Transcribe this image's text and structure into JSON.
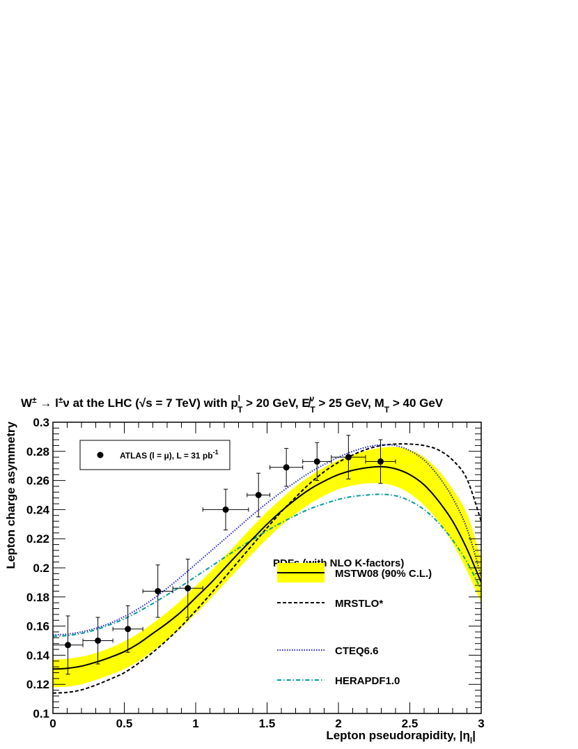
{
  "chart_data": {
    "type": "scatter",
    "title": "W± → l±ν at the LHC (√s = 7 TeV) with p_T^l > 20 GeV, E̸_T^ν > 25 GeV, M_T > 40 GeV",
    "title_parts": {
      "t1": "W",
      "t2": "±",
      "t3": " → l",
      "t4": "±",
      "t5": "ν at the LHC (",
      "t6": "√s = 7 TeV) with p",
      "t7": "l",
      "t8": "T",
      "t9": " > 20 GeV, E̸",
      "t10": "ν",
      "t11": "T",
      "t12": " > 25 GeV, M",
      "t13": "T",
      "t14": " > 40 GeV"
    },
    "xlabel": "Lepton pseudorapidity, |η",
    "xlabel_sub": "l",
    "xlabel_end": "|",
    "ylabel": "Lepton charge asymmetry",
    "xlim": [
      0,
      3
    ],
    "ylim": [
      0.1,
      0.3
    ],
    "x_ticks": [
      0,
      0.5,
      1,
      1.5,
      2,
      2.5,
      3
    ],
    "x_tick_labels": [
      "0",
      "0.5",
      "1",
      "1.5",
      "2",
      "2.5",
      "3"
    ],
    "y_ticks": [
      0.1,
      0.12,
      0.14,
      0.16,
      0.18,
      0.2,
      0.22,
      0.24,
      0.26,
      0.28,
      0.3
    ],
    "y_tick_labels": [
      "0.1",
      "0.12",
      "0.14",
      "0.16",
      "0.18",
      "0.2",
      "0.22",
      "0.24",
      "0.26",
      "0.28",
      "0.3"
    ],
    "grid": false,
    "data_points": {
      "legend": "ATLAS (l = μ), L = 31 pb",
      "legend_sup": "-1",
      "points": [
        {
          "x": 0.105,
          "y": 0.147,
          "xerr": 0.105,
          "yerr": 0.02
        },
        {
          "x": 0.315,
          "y": 0.15,
          "xerr": 0.105,
          "yerr": 0.016
        },
        {
          "x": 0.525,
          "y": 0.158,
          "xerr": 0.105,
          "yerr": 0.016
        },
        {
          "x": 0.735,
          "y": 0.184,
          "xerr": 0.105,
          "yerr": 0.018
        },
        {
          "x": 0.945,
          "y": 0.186,
          "xerr": 0.105,
          "yerr": 0.02
        },
        {
          "x": 1.21,
          "y": 0.24,
          "xerr": 0.16,
          "yerr": 0.014
        },
        {
          "x": 1.44,
          "y": 0.25,
          "xerr": 0.08,
          "yerr": 0.015
        },
        {
          "x": 1.635,
          "y": 0.269,
          "xerr": 0.115,
          "yerr": 0.013
        },
        {
          "x": 1.85,
          "y": 0.273,
          "xerr": 0.1,
          "yerr": 0.013
        },
        {
          "x": 2.07,
          "y": 0.276,
          "xerr": 0.12,
          "yerr": 0.015
        },
        {
          "x": 2.295,
          "y": 0.273,
          "xerr": 0.105,
          "yerr": 0.015
        }
      ]
    },
    "legend_header": "PDFs (with NLO K-factors)",
    "series": [
      {
        "name": "MSTW08 (90% C.L.)",
        "style": "solid",
        "color": "#000000",
        "band_color": "#ffff00",
        "x": [
          0,
          0.1,
          0.2,
          0.3,
          0.4,
          0.5,
          0.6,
          0.7,
          0.8,
          0.9,
          1.0,
          1.1,
          1.2,
          1.3,
          1.4,
          1.5,
          1.6,
          1.7,
          1.8,
          1.9,
          2.0,
          2.1,
          2.2,
          2.3,
          2.4,
          2.5,
          2.6,
          2.7,
          2.8,
          2.9,
          3.0
        ],
        "y": [
          0.1305,
          0.131,
          0.1325,
          0.1352,
          0.1385,
          0.1425,
          0.148,
          0.155,
          0.162,
          0.17,
          0.1795,
          0.189,
          0.1995,
          0.21,
          0.22,
          0.23,
          0.239,
          0.247,
          0.254,
          0.2595,
          0.264,
          0.267,
          0.2688,
          0.2695,
          0.268,
          0.264,
          0.257,
          0.246,
          0.232,
          0.213,
          0.19
        ],
        "band_upper": [
          0.137,
          0.1375,
          0.139,
          0.1415,
          0.145,
          0.1495,
          0.155,
          0.162,
          0.1695,
          0.178,
          0.1875,
          0.197,
          0.2075,
          0.218,
          0.2285,
          0.2385,
          0.2475,
          0.256,
          0.263,
          0.269,
          0.274,
          0.2775,
          0.2805,
          0.2825,
          0.283,
          0.281,
          0.276,
          0.267,
          0.254,
          0.237,
          0.206
        ],
        "band_lower": [
          0.118,
          0.1185,
          0.12,
          0.123,
          0.1265,
          0.1305,
          0.136,
          0.143,
          0.1505,
          0.159,
          0.1685,
          0.1785,
          0.189,
          0.1995,
          0.21,
          0.22,
          0.229,
          0.237,
          0.244,
          0.2495,
          0.254,
          0.2565,
          0.258,
          0.258,
          0.256,
          0.251,
          0.243,
          0.232,
          0.217,
          0.198,
          0.176
        ]
      },
      {
        "name": "MRSTLO*",
        "style": "dashed",
        "color": "#000000",
        "x": [
          0,
          0.1,
          0.2,
          0.3,
          0.4,
          0.5,
          0.6,
          0.7,
          0.8,
          0.9,
          1.0,
          1.1,
          1.2,
          1.3,
          1.4,
          1.5,
          1.6,
          1.7,
          1.8,
          1.9,
          2.0,
          2.1,
          2.2,
          2.3,
          2.4,
          2.5,
          2.6,
          2.7,
          2.8,
          2.9,
          3.0
        ],
        "y": [
          0.114,
          0.1145,
          0.1162,
          0.1195,
          0.1235,
          0.128,
          0.1345,
          0.142,
          0.1505,
          0.16,
          0.1705,
          0.1815,
          0.193,
          0.2045,
          0.216,
          0.2275,
          0.2385,
          0.2485,
          0.258,
          0.266,
          0.2725,
          0.2775,
          0.2815,
          0.284,
          0.285,
          0.285,
          0.284,
          0.281,
          0.274,
          0.261,
          0.232
        ]
      },
      {
        "name": "CTEQ6.6",
        "style": "dotted",
        "color": "#2020c8",
        "x": [
          0,
          0.1,
          0.2,
          0.3,
          0.4,
          0.5,
          0.6,
          0.7,
          0.8,
          0.9,
          1.0,
          1.1,
          1.2,
          1.3,
          1.4,
          1.5,
          1.6,
          1.7,
          1.8,
          1.9,
          2.0,
          2.1,
          2.2,
          2.3,
          2.4,
          2.5,
          2.6,
          2.7,
          2.8,
          2.9,
          3.0
        ],
        "y": [
          0.154,
          0.1545,
          0.156,
          0.1585,
          0.162,
          0.1665,
          0.172,
          0.1785,
          0.186,
          0.194,
          0.2025,
          0.211,
          0.2195,
          0.228,
          0.2365,
          0.2445,
          0.252,
          0.259,
          0.2655,
          0.271,
          0.276,
          0.28,
          0.283,
          0.2845,
          0.284,
          0.2805,
          0.274,
          0.263,
          0.248,
          0.227,
          0.194
        ]
      },
      {
        "name": "HERAPDF1.0",
        "style": "dashdot",
        "color": "#009a9a",
        "x": [
          0,
          0.1,
          0.2,
          0.3,
          0.4,
          0.5,
          0.6,
          0.7,
          0.8,
          0.9,
          1.0,
          1.1,
          1.2,
          1.3,
          1.4,
          1.5,
          1.6,
          1.7,
          1.8,
          1.9,
          2.0,
          2.1,
          2.2,
          2.3,
          2.4,
          2.5,
          2.6,
          2.7,
          2.8,
          2.9,
          3.0
        ],
        "y": [
          0.153,
          0.1535,
          0.155,
          0.1575,
          0.161,
          0.165,
          0.17,
          0.1755,
          0.1815,
          0.1875,
          0.194,
          0.2005,
          0.207,
          0.2135,
          0.2195,
          0.2255,
          0.231,
          0.236,
          0.2405,
          0.244,
          0.247,
          0.249,
          0.25,
          0.2505,
          0.2495,
          0.246,
          0.24,
          0.231,
          0.219,
          0.204,
          0.185
        ]
      }
    ]
  }
}
